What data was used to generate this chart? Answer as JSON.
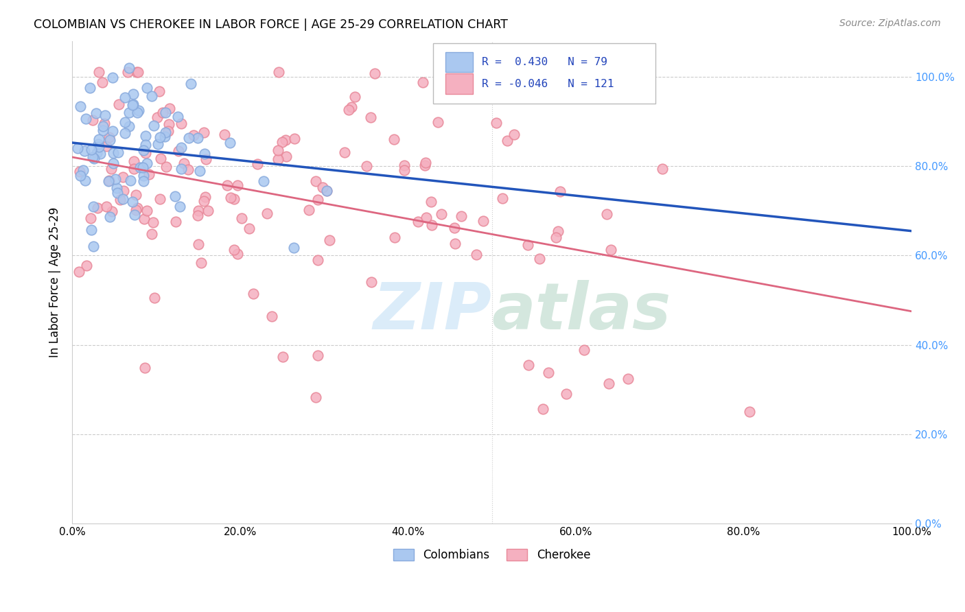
{
  "title": "COLOMBIAN VS CHEROKEE IN LABOR FORCE | AGE 25-29 CORRELATION CHART",
  "source": "Source: ZipAtlas.com",
  "ylabel": "In Labor Force | Age 25-29",
  "right_ytick_color": "#4499ff",
  "colombian_color": "#aac8f0",
  "colombian_edge_color": "#88aadd",
  "cherokee_color": "#f5b0c0",
  "cherokee_edge_color": "#e88899",
  "colombian_line_color": "#2255bb",
  "cherokee_line_color": "#dd6680",
  "watermark_color": "#cce4f7",
  "legend_label_1": "Colombians",
  "legend_label_2": "Cherokee",
  "R_colombian": 0.43,
  "N_colombian": 79,
  "R_cherokee": -0.046,
  "N_cherokee": 121,
  "seed_colombian": 42,
  "seed_cherokee": 99
}
